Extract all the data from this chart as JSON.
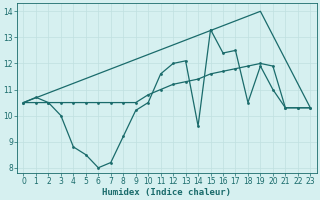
{
  "line1_x": [
    0,
    1,
    2,
    3,
    4,
    5,
    6,
    7,
    8,
    9,
    10,
    11,
    12,
    13,
    14,
    15,
    16,
    17,
    18,
    19,
    20,
    21,
    22,
    23
  ],
  "line1_y": [
    10.5,
    10.7,
    10.5,
    10.0,
    8.8,
    8.5,
    8.0,
    8.2,
    9.2,
    10.2,
    10.5,
    11.6,
    12.0,
    12.1,
    9.6,
    13.3,
    12.4,
    12.5,
    10.5,
    11.9,
    11.0,
    10.3,
    10.3,
    10.3
  ],
  "line2_x": [
    0,
    19,
    23
  ],
  "line2_y": [
    10.5,
    14.0,
    10.3
  ],
  "line3_x": [
    0,
    1,
    2,
    3,
    4,
    5,
    6,
    7,
    8,
    9,
    10,
    11,
    12,
    13,
    14,
    15,
    16,
    17,
    18,
    19,
    20,
    21,
    22,
    23
  ],
  "line3_y": [
    10.5,
    10.5,
    10.5,
    10.5,
    10.5,
    10.5,
    10.5,
    10.5,
    10.5,
    10.5,
    10.8,
    11.0,
    11.2,
    11.3,
    11.4,
    11.6,
    11.7,
    11.8,
    11.9,
    12.0,
    11.9,
    10.3,
    10.3,
    10.3
  ],
  "color": "#1a6b6b",
  "bg_color": "#d6f0f0",
  "grid_color": "#c0e0e0",
  "xlabel": "Humidex (Indice chaleur)",
  "xlim": [
    -0.5,
    23.5
  ],
  "ylim": [
    7.8,
    14.3
  ],
  "yticks": [
    8,
    9,
    10,
    11,
    12,
    13,
    14
  ],
  "xticks": [
    0,
    1,
    2,
    3,
    4,
    5,
    6,
    7,
    8,
    9,
    10,
    11,
    12,
    13,
    14,
    15,
    16,
    17,
    18,
    19,
    20,
    21,
    22,
    23
  ]
}
